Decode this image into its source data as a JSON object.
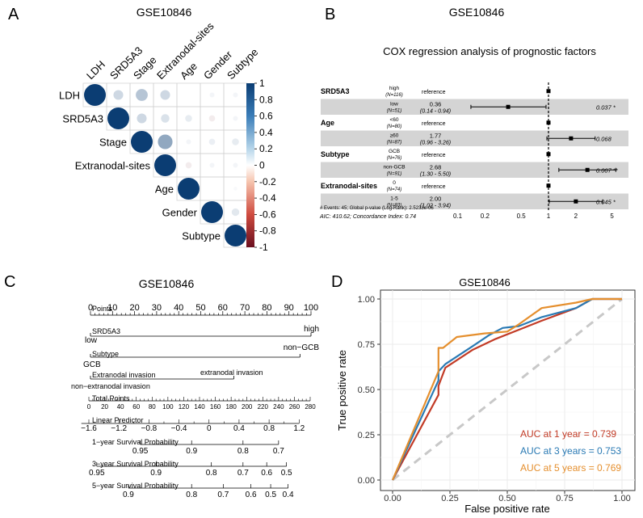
{
  "panels": {
    "a": {
      "letter": "A",
      "title": "GSE10846",
      "variables": [
        "LDH",
        "SRD5A3",
        "Stage",
        "Extranodal-sites",
        "Age",
        "Gender",
        "Subtype"
      ],
      "colorbar_ticks": [
        "1",
        "0.8",
        "0.6",
        "0.4",
        "0.2",
        "0",
        "-0.2",
        "-0.4",
        "-0.6",
        "-0.8",
        "-1"
      ],
      "colors": {
        "positive": "#0b3d73",
        "negative": "#6a0f1f",
        "zero": "#ffffff"
      }
    },
    "b": {
      "letter": "B",
      "title": "GSE10846",
      "subtitle": "COX regression analysis of prognostic factors",
      "footer_events": "# Events: 45; Global p-value (Log-Rank): 2.5233e-06",
      "footer_aic": "AIC: 410.62; Concordance Index: 0.74",
      "x_ticks": [
        "0.1",
        "0.2",
        "0.5",
        "1",
        "2",
        "5"
      ]
    },
    "c": {
      "letter": "C",
      "title": "GSE10846",
      "rows": {
        "points": "Points",
        "srd5a3": "SRD5A3",
        "subtype": "Subtype",
        "extranodal": "Extranodal invasion",
        "total": "Total Points",
        "lp": "Linear Predictor",
        "s1": "1−year Survival Probability",
        "s3": "3−year Survival Probability",
        "s5": "5−year Survival Probability"
      },
      "labels": {
        "srd5a3_low": "low",
        "srd5a3_high": "high",
        "subtype_gcb": "GCB",
        "subtype_nongcb": "non−GCB",
        "ext_non": "non−extranodal invasion",
        "ext_yes": "extranodal invasion"
      },
      "points_ticks": [
        "0",
        "10",
        "20",
        "30",
        "40",
        "50",
        "60",
        "70",
        "80",
        "90",
        "100"
      ],
      "total_ticks": [
        "0",
        "20",
        "40",
        "60",
        "80",
        "100",
        "120",
        "140",
        "160",
        "180",
        "200",
        "220",
        "240",
        "260",
        "280"
      ],
      "lp_ticks": [
        "−1.6",
        "−1.2",
        "−0.8",
        "−0.4",
        "0",
        "0.4",
        "0.8",
        "1.2"
      ],
      "s1_ticks": [
        "0.95",
        "0.9",
        "0.8",
        "0.7"
      ],
      "s3_ticks": [
        "0.95",
        "0.9",
        "0.8",
        "0.7",
        "0.6",
        "0.5"
      ],
      "s5_ticks": [
        "0.9",
        "0.8",
        "0.7",
        "0.6",
        "0.5",
        "0.4"
      ]
    },
    "d": {
      "letter": "D",
      "title": "GSE10846",
      "xlabel": "False positive rate",
      "ylabel": "True positive rate",
      "x_ticks": [
        "0.00",
        "0.25",
        "0.50",
        "0.75",
        "1.00"
      ],
      "y_ticks": [
        "0.00",
        "0.25",
        "0.50",
        "0.75",
        "1.00"
      ]
    }
  },
  "chart_data": [
    {
      "type": "heatmap",
      "panel": "A",
      "title": "GSE10846",
      "variables": [
        "LDH",
        "SRD5A3",
        "Stage",
        "Extranodal-sites",
        "Age",
        "Gender",
        "Subtype"
      ],
      "matrix": [
        [
          1,
          0.2,
          0.3,
          0.2,
          0,
          0.05,
          0.05
        ],
        [
          0.2,
          1,
          0.2,
          0.15,
          0.1,
          -0.08,
          0.05
        ],
        [
          0.3,
          0.2,
          1,
          0.45,
          0.05,
          0.08,
          0.1
        ],
        [
          0.2,
          0.15,
          0.45,
          1,
          -0.08,
          0.05,
          0.05
        ],
        [
          0,
          0.1,
          0.05,
          -0.08,
          1,
          0,
          0.03
        ],
        [
          0.05,
          -0.08,
          0.08,
          0.05,
          0,
          1,
          0.12
        ],
        [
          0.05,
          0.05,
          0.1,
          0.05,
          0.03,
          0.12,
          1
        ]
      ],
      "range": [
        -1,
        1
      ]
    },
    {
      "type": "forest",
      "panel": "B",
      "title": "COX regression analysis of prognostic factors",
      "xscale": "log",
      "xlim": [
        0.1,
        10
      ],
      "rows": [
        {
          "variable": "SRD5A3",
          "level": "high",
          "n": "(N=116)",
          "reference": "reference",
          "hr": 1,
          "shaded": false
        },
        {
          "variable": "",
          "level": "low",
          "n": "(N=51)",
          "hr": 0.36,
          "hr_text": "0.36",
          "ci": [
            0.14,
            0.94
          ],
          "ci_text": "(0.14 - 0.94)",
          "p": "0.037 *",
          "shaded": true
        },
        {
          "variable": "Age",
          "level": "<60",
          "n": "(N=80)",
          "reference": "reference",
          "hr": 1,
          "shaded": false
        },
        {
          "variable": "",
          "level": "≥60",
          "n": "(N=87)",
          "hr": 1.77,
          "hr_text": "1.77",
          "ci": [
            0.96,
            3.26
          ],
          "ci_text": "(0.96 - 3.26)",
          "p": "0.068",
          "shaded": true
        },
        {
          "variable": "Subtype",
          "level": "GCB",
          "n": "(N=76)",
          "reference": "reference",
          "hr": 1,
          "shaded": false
        },
        {
          "variable": "",
          "level": "non-GCB",
          "n": "(N=91)",
          "hr": 2.68,
          "hr_text": "2.68",
          "ci": [
            1.3,
            5.5
          ],
          "ci_text": "(1.30 - 5.50)",
          "p": "0.007 **",
          "shaded": true
        },
        {
          "variable": "Extranodal-sites",
          "level": "0",
          "n": "(N=74)",
          "reference": "reference",
          "hr": 1,
          "shaded": false
        },
        {
          "variable": "",
          "level": "1-5",
          "n": "(N=93)",
          "hr": 2.0,
          "hr_text": "2.00",
          "ci": [
            1.02,
            3.94
          ],
          "ci_text": "(1.02 - 3.94)",
          "p": "0.045 *",
          "shaded": true
        }
      ]
    },
    {
      "type": "nomogram",
      "panel": "C",
      "title": "GSE10846",
      "points_range": [
        0,
        100
      ],
      "total_points_range": [
        0,
        280
      ],
      "variables": [
        {
          "name": "SRD5A3",
          "levels": [
            {
              "label": "low",
              "points": 0
            },
            {
              "label": "high",
              "points": 100
            }
          ]
        },
        {
          "name": "Subtype",
          "levels": [
            {
              "label": "GCB",
              "points": 0
            },
            {
              "label": "non−GCB",
              "points": 95
            }
          ]
        },
        {
          "name": "Extranodal invasion",
          "levels": [
            {
              "label": "non−extranodal invasion",
              "points": 0
            },
            {
              "label": "extranodal invasion",
              "points": 65
            }
          ]
        }
      ],
      "scales": {
        "linear_predictor": [
          {
            "value": -1.6,
            "total_points": 0
          },
          {
            "value": 1.2,
            "total_points": 266
          }
        ],
        "survival_1y": [
          {
            "value": 0.95,
            "total_points": 65
          },
          {
            "value": 0.9,
            "total_points": 130
          },
          {
            "value": 0.8,
            "total_points": 195
          },
          {
            "value": 0.7,
            "total_points": 240
          }
        ],
        "survival_3y": [
          {
            "value": 0.95,
            "total_points": 10
          },
          {
            "value": 0.9,
            "total_points": 85
          },
          {
            "value": 0.8,
            "total_points": 155
          },
          {
            "value": 0.7,
            "total_points": 195
          },
          {
            "value": 0.6,
            "total_points": 225
          },
          {
            "value": 0.5,
            "total_points": 250
          }
        ],
        "survival_5y": [
          {
            "value": 0.9,
            "total_points": 50
          },
          {
            "value": 0.8,
            "total_points": 130
          },
          {
            "value": 0.7,
            "total_points": 170
          },
          {
            "value": 0.6,
            "total_points": 205
          },
          {
            "value": 0.5,
            "total_points": 230
          },
          {
            "value": 0.4,
            "total_points": 252
          }
        ]
      }
    },
    {
      "type": "line",
      "panel": "D",
      "title": "GSE10846",
      "xlabel": "False positive rate",
      "ylabel": "True positive rate",
      "xlim": [
        0,
        1
      ],
      "ylim": [
        0,
        1
      ],
      "grid": true,
      "diagonal": true,
      "series": [
        {
          "name": "AUC at 1 year = 0.739",
          "color": "#c23b26",
          "x": [
            0,
            0.2,
            0.2,
            0.23,
            0.35,
            0.45,
            0.55,
            0.65,
            0.8,
            0.87,
            1.0
          ],
          "y": [
            0,
            0.47,
            0.52,
            0.62,
            0.72,
            0.78,
            0.83,
            0.88,
            0.95,
            1.0,
            1.0
          ]
        },
        {
          "name": "AUC at 3 years = 0.753",
          "color": "#2a7ab4",
          "x": [
            0,
            0.2,
            0.2,
            0.23,
            0.35,
            0.42,
            0.48,
            0.55,
            0.65,
            0.8,
            0.87,
            1.0
          ],
          "y": [
            0,
            0.55,
            0.6,
            0.64,
            0.74,
            0.8,
            0.84,
            0.85,
            0.9,
            0.95,
            1.0,
            1.0
          ]
        },
        {
          "name": "AUC at 5 years = 0.769",
          "color": "#e58f2e",
          "x": [
            0,
            0.2,
            0.2,
            0.22,
            0.28,
            0.4,
            0.5,
            0.55,
            0.65,
            0.8,
            0.87,
            1.0
          ],
          "y": [
            0,
            0.6,
            0.73,
            0.73,
            0.79,
            0.81,
            0.82,
            0.86,
            0.95,
            0.98,
            1.0,
            1.0
          ]
        }
      ]
    }
  ]
}
